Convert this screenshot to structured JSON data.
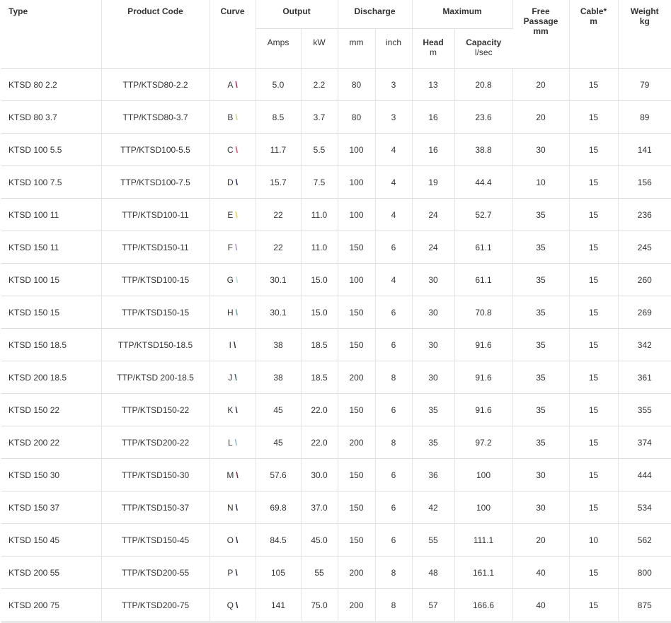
{
  "headers": {
    "type": "Type",
    "code": "Product Code",
    "curve": "Curve",
    "output": "Output",
    "discharge": "Discharge",
    "maximum": "Maximum",
    "free1": "Free",
    "free2": "Passage",
    "free3": "mm",
    "cable1": "Cable*",
    "cable2": "m",
    "weight1": "Weight",
    "weight2": "kg",
    "amps": "Amps",
    "kw": "kW",
    "mm": "mm",
    "inch": "inch",
    "head1": "Head",
    "head2": "m",
    "cap1": "Capacity",
    "cap2": "l/sec"
  },
  "rows": [
    [
      "KTSD 80 2.2",
      "TTP/KTSD80-2.2",
      "A",
      "5.0",
      "2.2",
      "80",
      "3",
      "13",
      "20.8",
      "20",
      "15",
      "79"
    ],
    [
      "KTSD 80 3.7",
      "TTP/KTSD80-3.7",
      "B",
      "8.5",
      "3.7",
      "80",
      "3",
      "16",
      "23.6",
      "20",
      "15",
      "89"
    ],
    [
      "KTSD 100 5.5",
      "TTP/KTSD100-5.5",
      "C",
      "11.7",
      "5.5",
      "100",
      "4",
      "16",
      "38.8",
      "30",
      "15",
      "141"
    ],
    [
      "KTSD 100 7.5",
      "TTP/KTSD100-7.5",
      "D",
      "15.7",
      "7.5",
      "100",
      "4",
      "19",
      "44.4",
      "10",
      "15",
      "156"
    ],
    [
      "KTSD 100 11",
      "TTP/KTSD100-11",
      "E",
      "22",
      "11.0",
      "100",
      "4",
      "24",
      "52.7",
      "35",
      "15",
      "236"
    ],
    [
      "KTSD 150 11",
      "TTP/KTSD150-11",
      "F",
      "22",
      "11.0",
      "150",
      "6",
      "24",
      "61.1",
      "35",
      "15",
      "245"
    ],
    [
      "KTSD 100 15",
      "TTP/KTSD100-15",
      "G",
      "30.1",
      "15.0",
      "100",
      "4",
      "30",
      "61.1",
      "35",
      "15",
      "260"
    ],
    [
      "KTSD 150 15",
      "TTP/KTSD150-15",
      "H",
      "30.1",
      "15.0",
      "150",
      "6",
      "30",
      "70.8",
      "35",
      "15",
      "269"
    ],
    [
      "KTSD 150 18.5",
      "TTP/KTSD150-18.5",
      "I",
      "38",
      "18.5",
      "150",
      "6",
      "30",
      "91.6",
      "35",
      "15",
      "342"
    ],
    [
      "KTSD 200 18.5",
      "TTP/KTSD 200-18.5",
      "J",
      "38",
      "18.5",
      "200",
      "8",
      "30",
      "91.6",
      "35",
      "15",
      "361"
    ],
    [
      "KTSD 150 22",
      "TTP/KTSD150-22",
      "K",
      "45",
      "22.0",
      "150",
      "6",
      "35",
      "91.6",
      "35",
      "15",
      "355"
    ],
    [
      "KTSD 200 22",
      "TTP/KTSD200-22",
      "L",
      "45",
      "22.0",
      "200",
      "8",
      "35",
      "97.2",
      "35",
      "15",
      "374"
    ],
    [
      "KTSD 150 30",
      "TTP/KTSD150-30",
      "M",
      "57.6",
      "30.0",
      "150",
      "6",
      "36",
      "100",
      "30",
      "15",
      "444"
    ],
    [
      "KTSD 150 37",
      "TTP/KTSD150-37",
      "N",
      "69.8",
      "37.0",
      "150",
      "6",
      "42",
      "100",
      "30",
      "15",
      "534"
    ],
    [
      "KTSD 150 45",
      "TTP/KTSD150-45",
      "O",
      "84.5",
      "45.0",
      "150",
      "6",
      "55",
      "111.1",
      "20",
      "10",
      "562"
    ],
    [
      "KTSD 200 55",
      "TTP/KTSD200-55",
      "P",
      "105",
      "55",
      "200",
      "8",
      "48",
      "161.1",
      "40",
      "15",
      "800"
    ],
    [
      "KTSD 200 75",
      "TTP/KTSD200-75",
      "Q",
      "141",
      "75.0",
      "200",
      "8",
      "57",
      "166.6",
      "40",
      "15",
      "875"
    ]
  ],
  "curve_colors": [
    "#c0114f",
    "#c9d27a",
    "#e0405a",
    "#1a2050",
    "#e6d23c",
    "#a88ac8",
    "#b5dcd8",
    "#5a9ea0",
    "#2a3040",
    "#2a5a5a",
    "#2a2a3a",
    "#7ab8c8",
    "#7a1a40",
    "#1a2040",
    "#2a2a3a",
    "#2a2a3a",
    "#2a2a3a"
  ],
  "curve_mark": "\\"
}
